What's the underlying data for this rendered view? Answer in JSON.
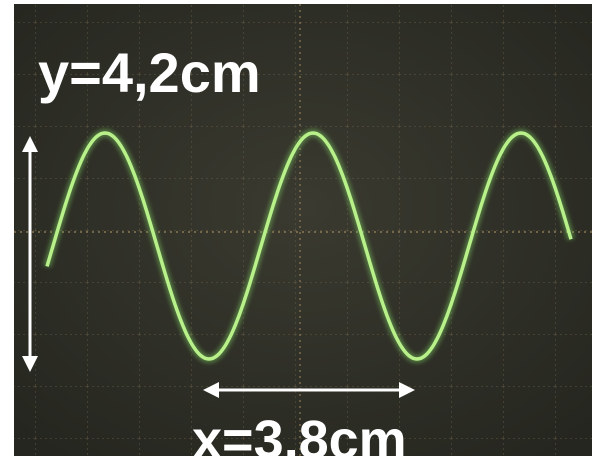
{
  "labels": {
    "y": "y=4,2cm",
    "x": "x=3,8cm"
  }
}
